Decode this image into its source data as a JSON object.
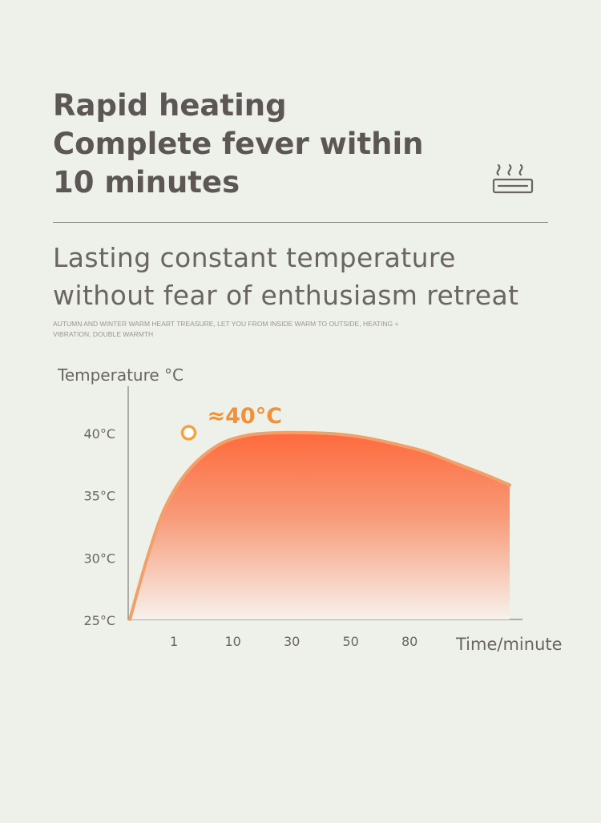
{
  "headline": {
    "lines": [
      "Rapid heating",
      "Complete fever within",
      "10 minutes"
    ]
  },
  "subheading": {
    "lines": [
      "Lasting constant temperature",
      "without fear of enthusiasm retreat"
    ]
  },
  "tagline": "AUTUMN AND WINTER WARM HEART TREASURE, LET YOU FROM INSIDE WARM TO OUTSIDE, HEATING + VIBRATION, DOUBLE WARMTH",
  "icons": {
    "heat": "heating-pad-steam-icon"
  },
  "colors": {
    "background": "#eef1ea",
    "curve": "#f0a06a",
    "fill_top": "#ff6a3d",
    "fill_bottom": "#f7f1ec",
    "peak_label": "#f2913a",
    "text": "#5c5754"
  },
  "chart_data": {
    "type": "area",
    "ylabel": "Temperature °C",
    "xlabel": "Time/minute",
    "x_ticks": [
      "1",
      "10",
      "30",
      "50",
      "80"
    ],
    "y_ticks": [
      "40°C",
      "35°C",
      "30°C",
      "25°C"
    ],
    "ylim": [
      25,
      42
    ],
    "annotation": {
      "label": "≈40°C",
      "value": 40,
      "at_tick_index": 1
    },
    "series": [
      {
        "points": [
          [
            0,
            25
          ],
          [
            0.3,
            30
          ],
          [
            0.6,
            34
          ],
          [
            1,
            37
          ],
          [
            1.5,
            39
          ],
          [
            2,
            39.8
          ],
          [
            2.5,
            40
          ],
          [
            3,
            40
          ],
          [
            3.5,
            39.9
          ],
          [
            4,
            39.6
          ],
          [
            4.5,
            39.1
          ],
          [
            5,
            38.5
          ],
          [
            5.5,
            37.6
          ],
          [
            6,
            36.7
          ],
          [
            6.45,
            35.8
          ]
        ]
      }
    ],
    "grid": false
  }
}
